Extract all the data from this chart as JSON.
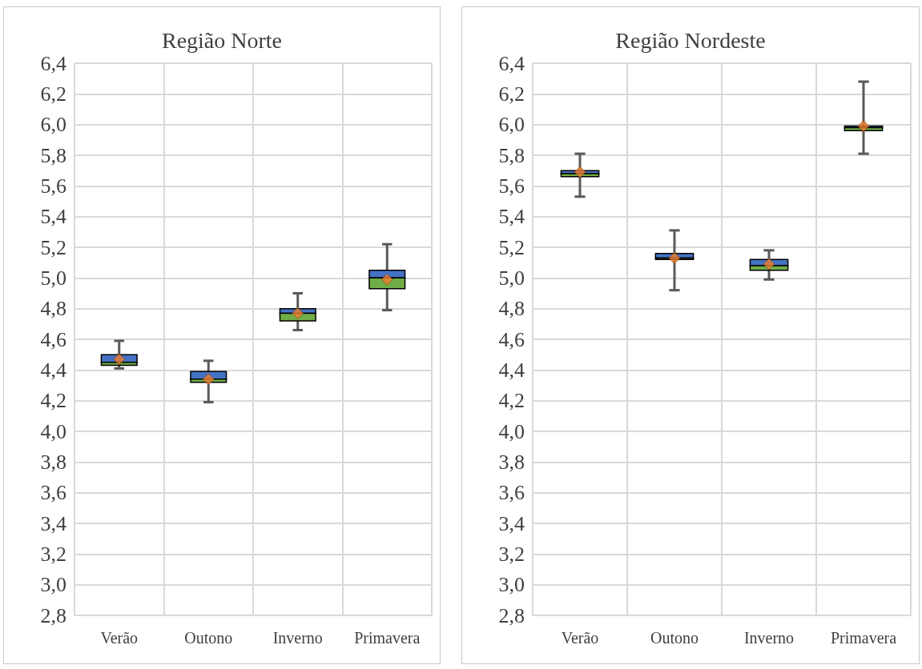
{
  "chart_data": [
    {
      "type": "box",
      "title": "Região Norte",
      "categories": [
        "Verão",
        "Outono",
        "Inverno",
        "Primavera"
      ],
      "series": [
        {
          "boxes": [
            {
              "low": 4.41,
              "q1": 4.43,
              "median": 4.45,
              "q3": 4.5,
              "high": 4.59,
              "mean": 4.47
            },
            {
              "low": 4.19,
              "q1": 4.32,
              "median": 4.34,
              "q3": 4.39,
              "high": 4.46,
              "mean": 4.34
            },
            {
              "low": 4.66,
              "q1": 4.72,
              "median": 4.77,
              "q3": 4.8,
              "high": 4.9,
              "mean": 4.77
            },
            {
              "low": 4.79,
              "q1": 4.93,
              "median": 5.0,
              "q3": 5.05,
              "high": 5.22,
              "mean": 4.99
            }
          ]
        }
      ],
      "ylim": [
        2.8,
        6.4
      ],
      "yticks": [
        {
          "value": 2.8,
          "label": "2,8"
        },
        {
          "value": 3.0,
          "label": "3,0"
        },
        {
          "value": 3.2,
          "label": "3,2"
        },
        {
          "value": 3.4,
          "label": "3,4"
        },
        {
          "value": 3.6,
          "label": "3,6"
        },
        {
          "value": 3.8,
          "label": "3,8"
        },
        {
          "value": 4.0,
          "label": "4,0"
        },
        {
          "value": 4.2,
          "label": "4,2"
        },
        {
          "value": 4.4,
          "label": "4,4"
        },
        {
          "value": 4.6,
          "label": "4,6"
        },
        {
          "value": 4.8,
          "label": "4,8"
        },
        {
          "value": 5.0,
          "label": "5,0"
        },
        {
          "value": 5.2,
          "label": "5,2"
        },
        {
          "value": 5.4,
          "label": "5,4"
        },
        {
          "value": 5.6,
          "label": "5,6"
        },
        {
          "value": 5.8,
          "label": "5,8"
        },
        {
          "value": 6.0,
          "label": "6,0"
        },
        {
          "value": 6.2,
          "label": "6,2"
        },
        {
          "value": 6.4,
          "label": "6,4"
        }
      ],
      "grid": true
    },
    {
      "type": "box",
      "title": "Região Nordeste",
      "categories": [
        "Verão",
        "Outono",
        "Inverno",
        "Primavera"
      ],
      "series": [
        {
          "boxes": [
            {
              "low": 5.53,
              "q1": 5.66,
              "median": 5.68,
              "q3": 5.7,
              "high": 5.81,
              "mean": 5.69
            },
            {
              "low": 4.92,
              "q1": 5.12,
              "median": 5.13,
              "q3": 5.16,
              "high": 5.31,
              "mean": 5.13
            },
            {
              "low": 4.99,
              "q1": 5.05,
              "median": 5.08,
              "q3": 5.12,
              "high": 5.18,
              "mean": 5.09
            },
            {
              "low": 5.81,
              "q1": 5.96,
              "median": 5.98,
              "q3": 5.99,
              "high": 6.28,
              "mean": 5.99
            }
          ]
        }
      ],
      "ylim": [
        2.8,
        6.4
      ],
      "yticks": [
        {
          "value": 2.8,
          "label": "2,8"
        },
        {
          "value": 3.0,
          "label": "3,0"
        },
        {
          "value": 3.2,
          "label": "3,2"
        },
        {
          "value": 3.4,
          "label": "3,4"
        },
        {
          "value": 3.6,
          "label": "3,6"
        },
        {
          "value": 3.8,
          "label": "3,8"
        },
        {
          "value": 4.0,
          "label": "4,0"
        },
        {
          "value": 4.2,
          "label": "4,2"
        },
        {
          "value": 4.4,
          "label": "4,4"
        },
        {
          "value": 4.6,
          "label": "4,6"
        },
        {
          "value": 4.8,
          "label": "4,8"
        },
        {
          "value": 5.0,
          "label": "5,0"
        },
        {
          "value": 5.2,
          "label": "5,2"
        },
        {
          "value": 5.4,
          "label": "5,4"
        },
        {
          "value": 5.6,
          "label": "5,6"
        },
        {
          "value": 5.8,
          "label": "5,8"
        },
        {
          "value": 6.0,
          "label": "6,0"
        },
        {
          "value": 6.2,
          "label": "6,2"
        },
        {
          "value": 6.4,
          "label": "6,4"
        }
      ],
      "grid": true
    }
  ]
}
